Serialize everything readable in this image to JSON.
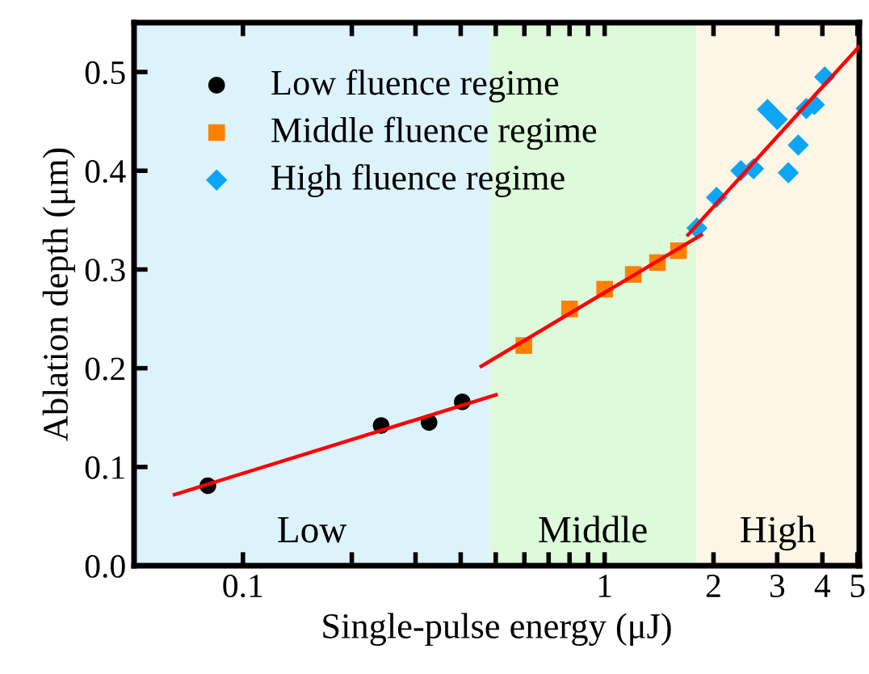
{
  "chart_data": {
    "type": "scatter",
    "xlabel": "Single-pulse energy (μJ)",
    "ylabel": "Ablation depth (μm)",
    "log": "x",
    "xlim": [
      0.05,
      5.06
    ],
    "ylim": [
      0,
      0.55
    ],
    "xticks": [
      0.1,
      {
        "value": 0.2,
        "label": null
      },
      {
        "value": 0.3,
        "label": null
      },
      {
        "value": 0.4,
        "label": null
      },
      {
        "value": 0.5,
        "label": null
      },
      {
        "value": 0.6,
        "label": null
      },
      {
        "value": 0.7,
        "label": null
      },
      {
        "value": 0.8,
        "label": null
      },
      {
        "value": 0.9,
        "label": null
      },
      1,
      2,
      3,
      4,
      5
    ],
    "yticks": [
      {
        "value": 0,
        "label": "0.0"
      },
      0.1,
      0.2,
      0.3,
      0.4,
      0.5
    ],
    "grid": false,
    "legend": "top left",
    "bands": [
      {
        "axis": "x",
        "from": 0.05,
        "to": 0.481,
        "label": "Low",
        "color": "#ddf3fc"
      },
      {
        "axis": "x",
        "from": 0.481,
        "to": 1.79,
        "label": "Middle",
        "color": "#ddfadb"
      },
      {
        "axis": "x",
        "from": 1.79,
        "to": 5.06,
        "label": "High",
        "color": "#fdf5e6"
      }
    ],
    "series": [
      {
        "name": "Low fluence regime",
        "marker": "circle",
        "color": "#000000",
        "x": [
          0.08,
          0.241,
          0.327,
          0.404
        ],
        "values": [
          0.081,
          0.142,
          0.145,
          0.166
        ]
      },
      {
        "name": "Middle fluence regime",
        "marker": "square",
        "color": "#ff8000",
        "x": [
          0.598,
          0.8,
          1.0,
          1.2,
          1.4,
          1.6
        ],
        "values": [
          0.223,
          0.26,
          0.28,
          0.295,
          0.307,
          0.319
        ]
      },
      {
        "name": "High fluence regime",
        "marker": "diamond",
        "color": "#0ea5f5",
        "x": [
          1.8,
          2.04,
          2.38,
          2.58,
          2.82,
          3.0,
          3.22,
          3.43,
          3.61,
          3.8,
          4.06
        ],
        "values": [
          0.342,
          0.373,
          0.4,
          0.402,
          0.462,
          0.452,
          0.398,
          0.426,
          0.463,
          0.467,
          0.495
        ]
      },
      {
        "type": "line",
        "color": "#ff0000",
        "x": [
          0.0647,
          0.501
        ],
        "values": [
          0.072,
          0.173
        ]
      },
      {
        "type": "line",
        "color": "#ff0000",
        "x": [
          0.456,
          1.85
        ],
        "values": [
          0.202,
          0.335
        ]
      },
      {
        "type": "line",
        "color": "#ff0000",
        "x": [
          1.7,
          5.06
        ],
        "values": [
          0.335,
          0.526
        ]
      }
    ]
  }
}
